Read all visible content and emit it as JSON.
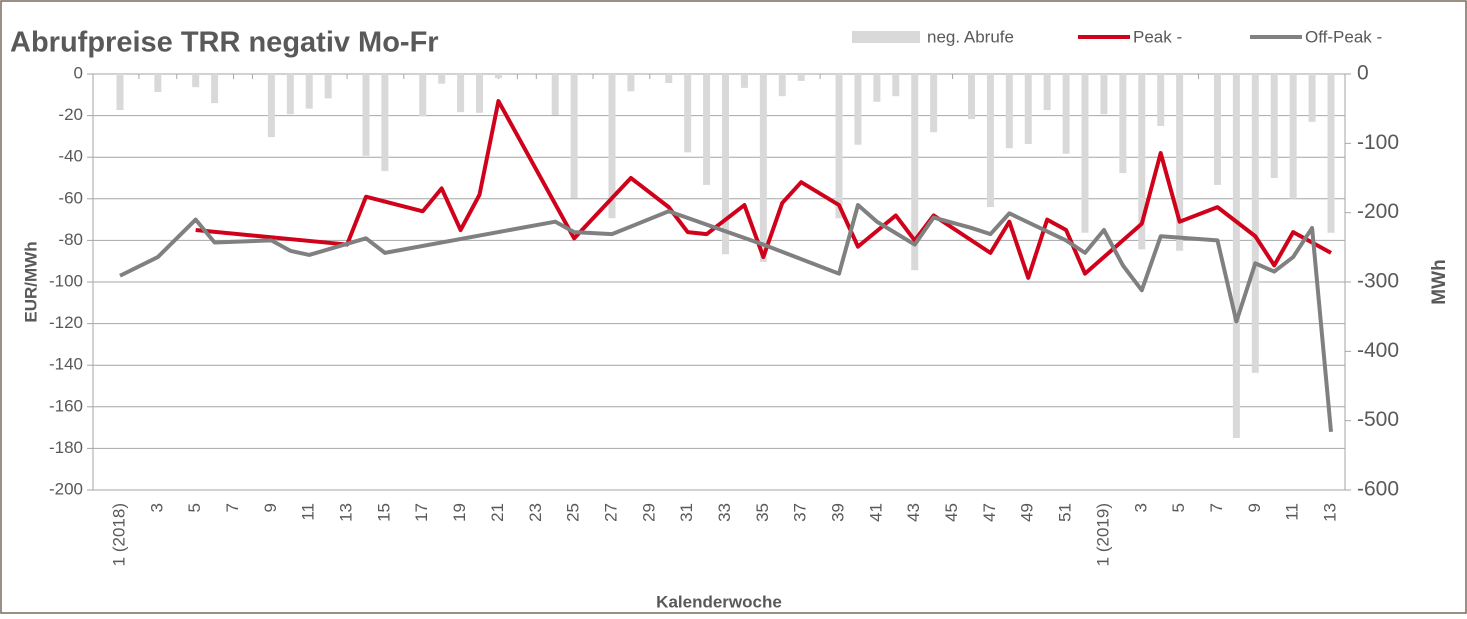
{
  "chart_data": {
    "type": "combo",
    "title": "Abrufpreise TRR negativ  Mo-Fr",
    "x_label": "Kalenderwoche",
    "y_label": "EUR/MWh",
    "y2_label": "MWh",
    "categories": [
      "1 (2018)",
      null,
      "3",
      null,
      "5",
      null,
      "7",
      null,
      "9",
      null,
      "11",
      null,
      "13",
      null,
      "15",
      null,
      "17",
      null,
      "19",
      null,
      "21",
      null,
      "23",
      null,
      "25",
      null,
      "27",
      null,
      "29",
      null,
      "31",
      null,
      "33",
      null,
      "35",
      null,
      "37",
      null,
      "39",
      null,
      "41",
      null,
      "43",
      null,
      "45",
      null,
      "47",
      null,
      "49",
      null,
      "51",
      null,
      "1 (2019)",
      null,
      "3",
      null,
      "5",
      null,
      "7",
      null,
      "9",
      null,
      "11",
      null,
      "13"
    ],
    "series": [
      {
        "name": "neg. Abrufe",
        "type": "bar",
        "axis": "y2",
        "color": "#d9d9d9",
        "values": [
          -52,
          null,
          -26,
          null,
          -19,
          -42,
          null,
          null,
          -91,
          -58,
          -50,
          -35,
          null,
          -118,
          -140,
          null,
          -61,
          -14,
          -55,
          -56,
          -6,
          null,
          null,
          -59,
          -179,
          null,
          -208,
          -25,
          null,
          -13,
          -113,
          -160,
          -260,
          -20,
          -271,
          -32,
          -10,
          null,
          -208,
          -102,
          -40,
          -32,
          -283,
          -84,
          null,
          -65,
          -192,
          -107,
          -101,
          -52,
          -115,
          -229,
          -58,
          -143,
          -253,
          -75,
          -255,
          null,
          -160,
          -525,
          -431,
          -150,
          -180,
          -69,
          -229
        ]
      },
      {
        "name": "Peak -",
        "type": "line",
        "color": "#d0021b",
        "values": [
          null,
          null,
          null,
          null,
          -75,
          null,
          null,
          null,
          null,
          null,
          null,
          null,
          -82,
          -59,
          null,
          null,
          -66,
          -55,
          -75,
          -58,
          -13,
          null,
          null,
          null,
          -79,
          null,
          null,
          -50,
          null,
          -64,
          -76,
          -77,
          null,
          -63,
          -88,
          -62,
          -52,
          null,
          -63,
          -83,
          null,
          -68,
          -80,
          -68,
          null,
          null,
          -86,
          -71,
          -98,
          -70,
          -75,
          -96,
          null,
          null,
          -72,
          -38,
          -71,
          null,
          -64,
          null,
          -78,
          -92,
          -76,
          null,
          -86
        ]
      },
      {
        "name": "Off-Peak -",
        "type": "line",
        "color": "#808080",
        "values": [
          -97,
          null,
          -88,
          null,
          -70,
          -81,
          null,
          null,
          -80,
          -85,
          -87,
          null,
          null,
          -79,
          -86,
          null,
          null,
          null,
          null,
          null,
          null,
          null,
          null,
          -71,
          -76,
          null,
          -77,
          null,
          null,
          -66,
          null,
          null,
          null,
          null,
          -82,
          null,
          null,
          null,
          -96,
          -63,
          -71,
          null,
          -82,
          -69,
          null,
          -74,
          -77,
          -67,
          null,
          null,
          -80,
          -86,
          -75,
          -92,
          -104,
          -78,
          null,
          null,
          -80,
          -119,
          -91,
          -95,
          -88,
          -74,
          -172
        ]
      }
    ],
    "connect_gaps": true,
    "ylim": [
      -200,
      0
    ],
    "yticks": [
      0,
      -20,
      -40,
      -60,
      -80,
      -100,
      -120,
      -140,
      -160,
      -180,
      -200
    ],
    "y2lim": [
      -600,
      0
    ],
    "y2ticks": [
      0,
      -100,
      -200,
      -300,
      -400,
      -500,
      -600
    ],
    "grid": true,
    "legend": "top-right"
  }
}
